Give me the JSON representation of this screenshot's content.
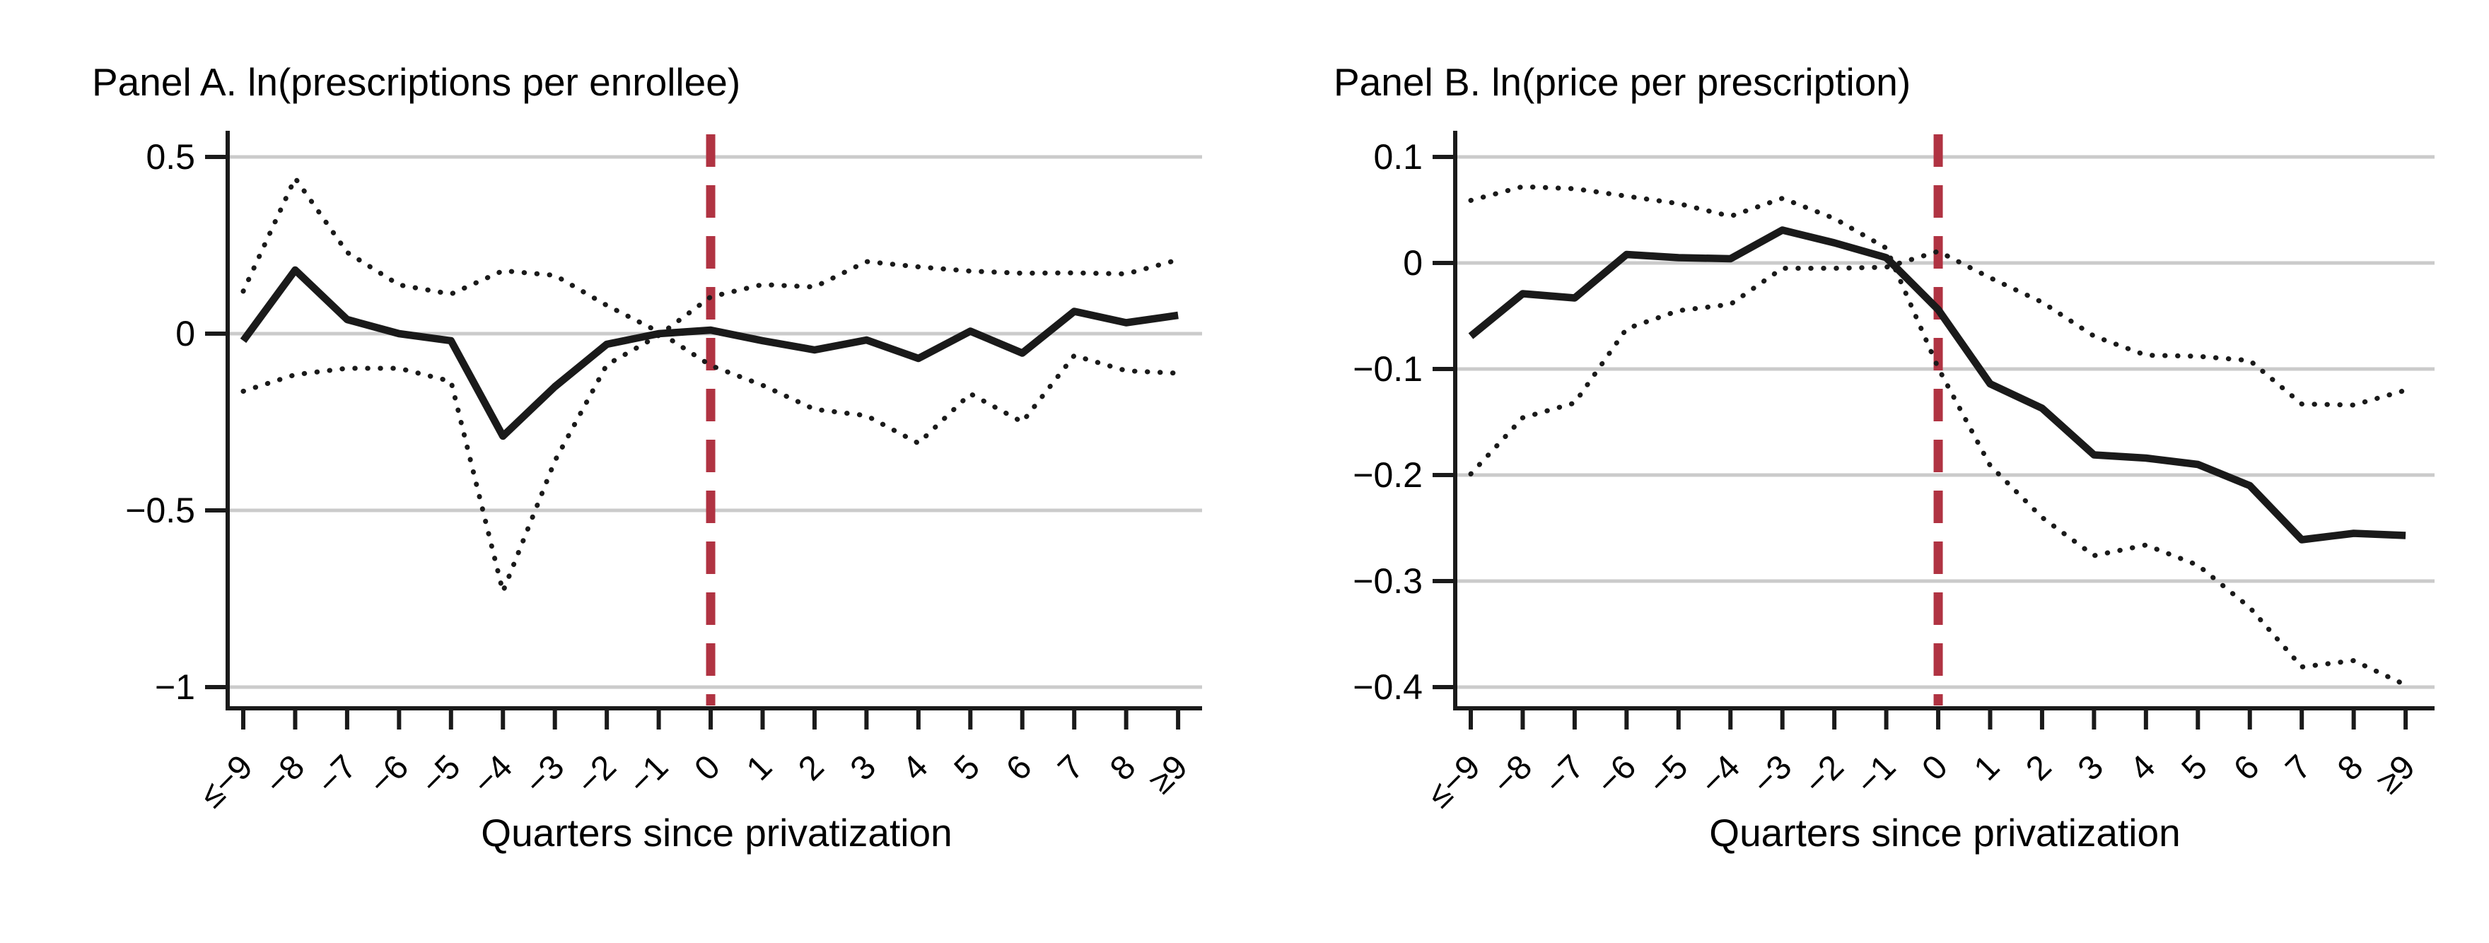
{
  "figure": {
    "x_axis_title": "Quarters since privatization",
    "colors": {
      "event_line_red": "#b03342",
      "gridline_gray": "#cbcbcb",
      "series_black": "#1a1a1a",
      "background": "#ffffff"
    }
  },
  "chart_data": [
    {
      "type": "line",
      "panel": "A",
      "title": "Panel A. ln(prescriptions per enrollee)",
      "xlabel": "Quarters since privatization",
      "x": [
        -9,
        -8,
        -7,
        -6,
        -5,
        -4,
        -3,
        -2,
        -1,
        0,
        1,
        2,
        3,
        4,
        5,
        6,
        7,
        8,
        9
      ],
      "x_tick_labels": [
        "≤−9",
        "−8",
        "−7",
        "−6",
        "−5",
        "−4",
        "−3",
        "−2",
        "−1",
        "0",
        "1",
        "2",
        "3",
        "4",
        "5",
        "6",
        "7",
        "8",
        "≥9"
      ],
      "ylim": [
        -1,
        0.5
      ],
      "yticks": [
        0.5,
        0,
        -0.5,
        -1
      ],
      "ytick_labels": [
        "0.5",
        "0",
        "−0.5",
        "−1"
      ],
      "event_line_x": 0,
      "grid": true,
      "legend": null,
      "series": [
        {
          "name": "point-estimate",
          "style": "solid",
          "values": [
            -0.02,
            0.18,
            0.04,
            0.0,
            -0.02,
            -0.29,
            -0.15,
            -0.03,
            0.0,
            0.01,
            -0.02,
            -0.046,
            -0.018,
            -0.07,
            0.007,
            -0.055,
            0.063,
            0.031,
            0.052
          ]
        },
        {
          "name": "ci-dotted-1",
          "style": "dotted",
          "values": [
            0.12,
            0.44,
            0.23,
            0.138,
            0.112,
            0.178,
            0.165,
            0.08,
            0.005,
            -0.09,
            -0.146,
            -0.214,
            -0.232,
            -0.31,
            -0.17,
            -0.25,
            -0.062,
            -0.105,
            -0.112
          ]
        },
        {
          "name": "ci-dotted-2",
          "style": "dotted",
          "values": [
            -0.163,
            -0.116,
            -0.098,
            -0.098,
            -0.135,
            -0.73,
            -0.36,
            -0.088,
            -0.005,
            0.104,
            0.139,
            0.132,
            0.204,
            0.189,
            0.177,
            0.171,
            0.172,
            0.169,
            0.209
          ]
        }
      ]
    },
    {
      "type": "line",
      "panel": "B",
      "title": "Panel B. ln(price per prescription)",
      "xlabel": "Quarters since privatization",
      "x": [
        -9,
        -8,
        -7,
        -6,
        -5,
        -4,
        -3,
        -2,
        -1,
        0,
        1,
        2,
        3,
        4,
        5,
        6,
        7,
        8,
        9
      ],
      "x_tick_labels": [
        "≤−9",
        "−8",
        "−7",
        "−6",
        "−5",
        "−4",
        "−3",
        "−2",
        "−1",
        "0",
        "1",
        "2",
        "3",
        "4",
        "5",
        "6",
        "7",
        "8",
        "≥9"
      ],
      "ylim": [
        -0.4,
        0.1
      ],
      "yticks": [
        0.1,
        0,
        -0.1,
        -0.2,
        -0.3,
        -0.4
      ],
      "ytick_labels": [
        "0.1",
        "0",
        "−0.1",
        "−0.2",
        "−0.3",
        "−0.4"
      ],
      "event_line_x": 0,
      "grid": true,
      "legend": null,
      "series": [
        {
          "name": "point-estimate",
          "style": "solid",
          "values": [
            -0.069,
            -0.029,
            -0.033,
            0.008,
            0.005,
            0.004,
            0.031,
            0.019,
            0.005,
            -0.044,
            -0.114,
            -0.137,
            -0.181,
            -0.184,
            -0.19,
            -0.21,
            -0.261,
            -0.255,
            -0.257
          ]
        },
        {
          "name": "ci-dotted-1",
          "style": "dotted",
          "values": [
            0.059,
            0.072,
            0.07,
            0.063,
            0.056,
            0.044,
            0.061,
            0.042,
            0.014,
            -0.099,
            -0.191,
            -0.24,
            -0.276,
            -0.266,
            -0.285,
            -0.325,
            -0.381,
            -0.375,
            -0.398
          ]
        },
        {
          "name": "ci-dotted-2",
          "style": "dotted",
          "values": [
            -0.199,
            -0.146,
            -0.132,
            -0.062,
            -0.045,
            -0.039,
            -0.005,
            -0.005,
            -0.004,
            0.011,
            -0.014,
            -0.037,
            -0.069,
            -0.087,
            -0.088,
            -0.092,
            -0.133,
            -0.134,
            -0.12
          ]
        }
      ]
    }
  ]
}
